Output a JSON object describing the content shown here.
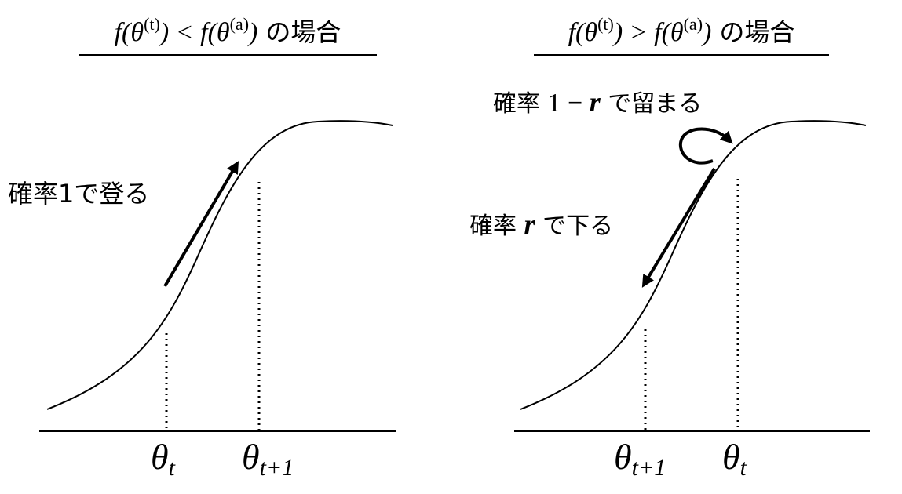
{
  "panels": [
    {
      "title": {
        "f1": "f(θ",
        "sup1": "(t)",
        "mid": ") < f(θ",
        "sup2": "(a)",
        "end": ")",
        "suffix": "の場合"
      },
      "annotations": [
        {
          "prefix": "確率1で登る"
        }
      ],
      "x_labels": [
        {
          "symbol": "θ",
          "subscript": "t"
        },
        {
          "symbol": "θ",
          "subscript": "t+1"
        }
      ]
    },
    {
      "title": {
        "f1": "f(θ",
        "sup1": "(t)",
        "mid": ") > f(θ",
        "sup2": "(a)",
        "end": ")",
        "suffix": "の場合"
      },
      "annotations": [
        {
          "prefix": "確率 ",
          "num": "1 − ",
          "var": "r",
          "suffix": " で留まる"
        },
        {
          "prefix": "確率 ",
          "var": "r",
          "suffix": " で下る"
        }
      ],
      "x_labels": [
        {
          "symbol": "θ",
          "subscript": "t+1"
        },
        {
          "symbol": "θ",
          "subscript": "t"
        }
      ]
    }
  ]
}
